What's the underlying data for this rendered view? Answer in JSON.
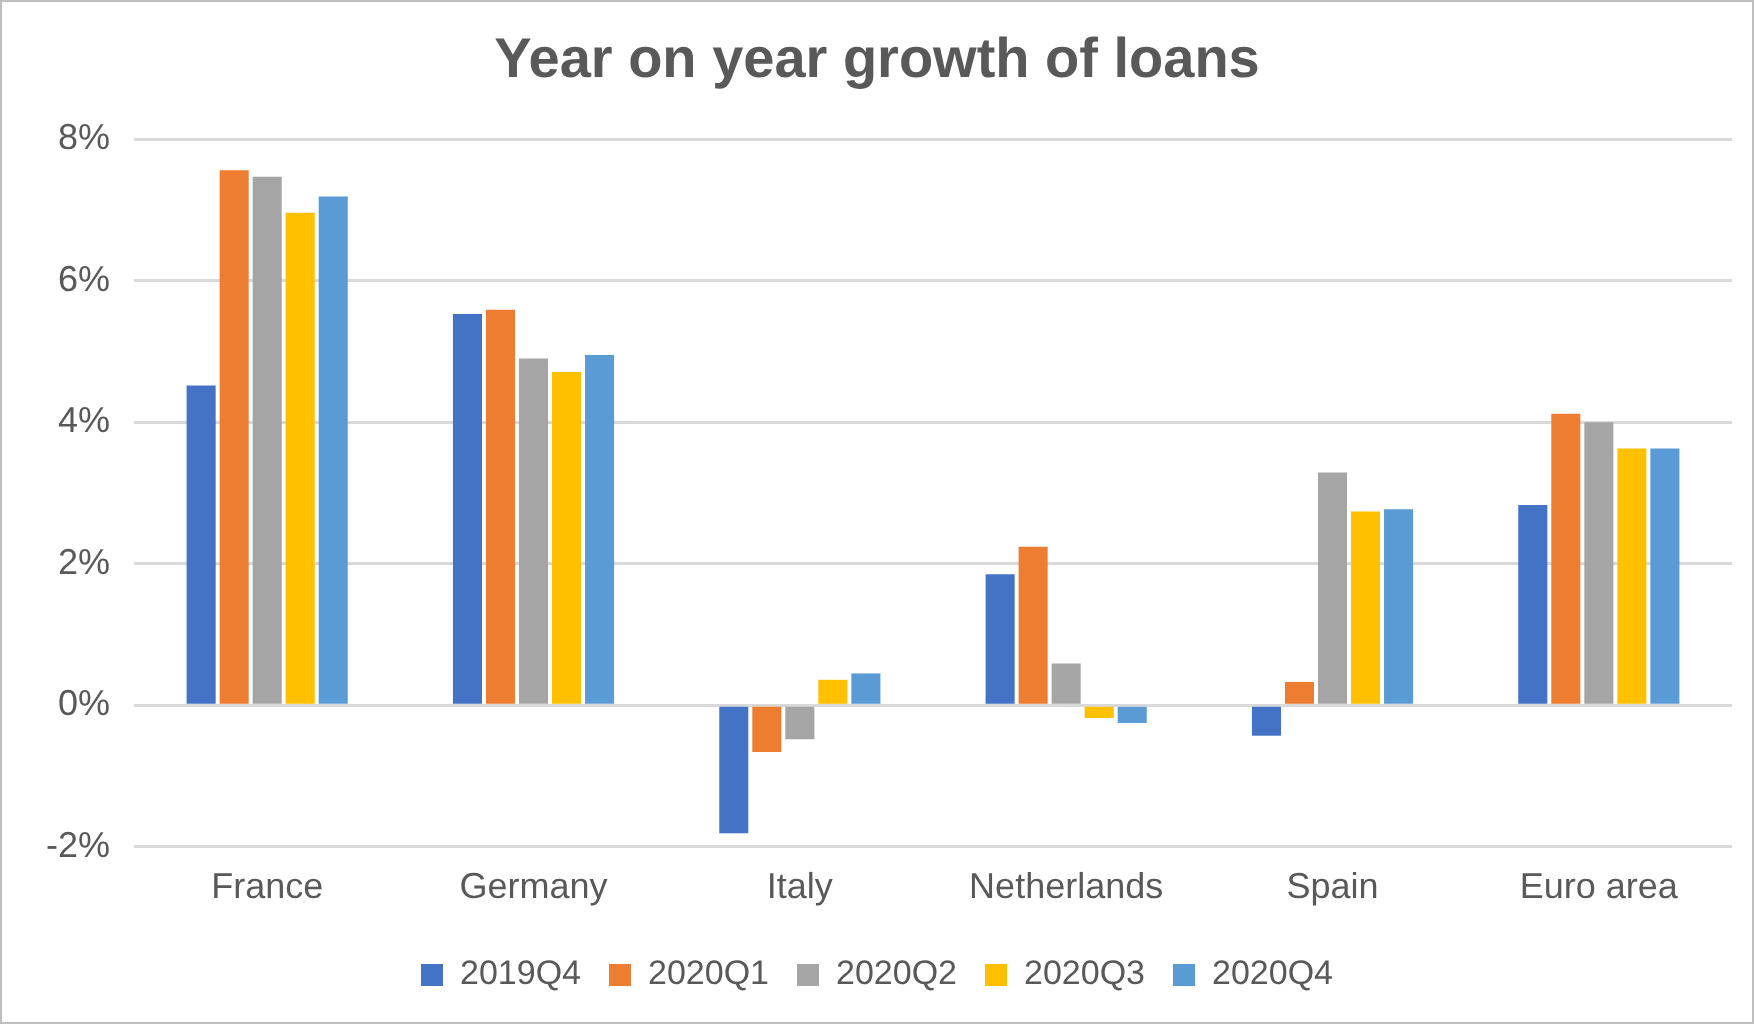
{
  "chart_data": {
    "type": "bar",
    "title": "Year on year growth of loans",
    "categories": [
      "France",
      "Germany",
      "Italy",
      "Netherlands",
      "Spain",
      "Euro area"
    ],
    "series": [
      {
        "name": "2019Q4",
        "color": "#4472c4",
        "values": [
          4.52,
          5.53,
          -1.81,
          1.85,
          -0.43,
          2.83
        ]
      },
      {
        "name": "2020Q1",
        "color": "#ed7d31",
        "values": [
          7.56,
          5.59,
          -0.66,
          2.24,
          0.33,
          4.12
        ]
      },
      {
        "name": "2020Q2",
        "color": "#a5a5a5",
        "values": [
          7.47,
          4.9,
          -0.48,
          0.59,
          3.29,
          4.0
        ]
      },
      {
        "name": "2020Q3",
        "color": "#ffc000",
        "values": [
          6.96,
          4.71,
          0.36,
          -0.18,
          2.74,
          3.63
        ]
      },
      {
        "name": "2020Q4",
        "color": "#5b9bd5",
        "values": [
          7.19,
          4.95,
          0.45,
          -0.25,
          2.77,
          3.63
        ]
      }
    ],
    "ylim": [
      -2,
      8
    ],
    "yticks": [
      {
        "value": -2,
        "label": "-2%"
      },
      {
        "value": 0,
        "label": "0%"
      },
      {
        "value": 2,
        "label": "2%"
      },
      {
        "value": 4,
        "label": "4%"
      },
      {
        "value": 6,
        "label": "6%"
      },
      {
        "value": 8,
        "label": "8%"
      }
    ],
    "grid": "y",
    "legend": "bottom"
  }
}
